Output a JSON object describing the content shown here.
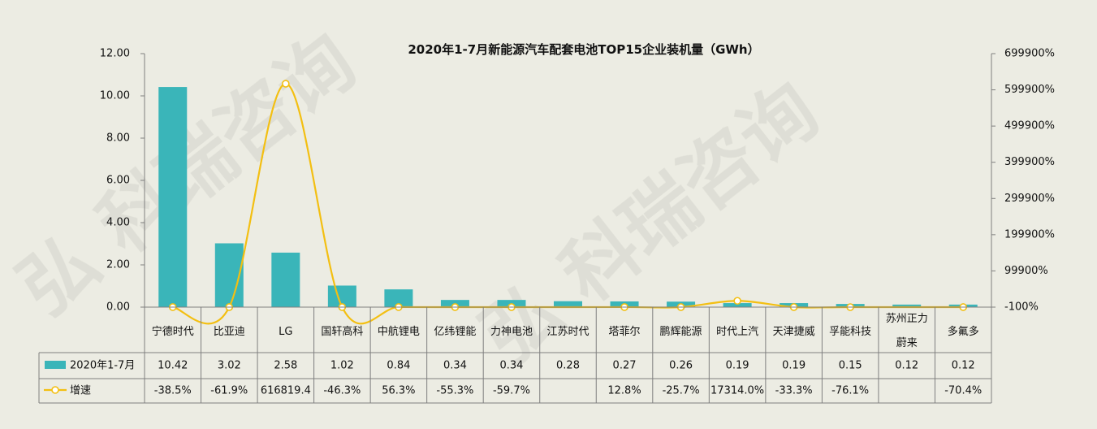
{
  "chart_data": {
    "type": "bar",
    "title": "2020年1-7月新能源汽车配套电池TOP15企业装机量（GWh）",
    "watermark": "弘 科瑞咨询",
    "categories": [
      "宁德时代",
      "比亚迪",
      "LG",
      "国轩高科",
      "中航锂电",
      "亿纬锂能",
      "力神电池",
      "江苏时代",
      "塔菲尔",
      "鹏辉能源",
      "时代上汽",
      "天津捷威",
      "孚能科技",
      "苏州正力蔚来",
      "多氟多"
    ],
    "series": [
      {
        "name": "2020年1-7月",
        "type": "bar",
        "axis": "left",
        "color": "#3ab5b9",
        "values": [
          10.42,
          3.02,
          2.58,
          1.02,
          0.84,
          0.34,
          0.34,
          0.28,
          0.27,
          0.26,
          0.19,
          0.19,
          0.15,
          0.12,
          0.12
        ],
        "labels": [
          "10.42",
          "3.02",
          "2.58",
          "1.02",
          "0.84",
          "0.34",
          "0.34",
          "0.28",
          "0.27",
          "0.26",
          "0.19",
          "0.19",
          "0.15",
          "0.12",
          "0.12"
        ]
      },
      {
        "name": "增速",
        "type": "line",
        "axis": "right",
        "color": "#f3bf12",
        "values": [
          -38.5,
          -61.9,
          616819.4,
          -46.3,
          56.3,
          -55.3,
          -59.7,
          null,
          12.8,
          -25.7,
          17314.0,
          -33.3,
          -76.1,
          null,
          -70.4
        ],
        "labels": [
          "-38.5%",
          "-61.9%",
          "616819.4",
          "-46.3%",
          "56.3%",
          "-55.3%",
          "-59.7%",
          "",
          "12.8%",
          "-25.7%",
          "17314.0%",
          "-33.3%",
          "-76.1%",
          "",
          "-70.4%"
        ]
      }
    ],
    "y_left": {
      "ylim": [
        0,
        12
      ],
      "ticks": [
        "0.00",
        "2.00",
        "4.00",
        "6.00",
        "8.00",
        "10.00",
        "12.00"
      ]
    },
    "y_right": {
      "ylim": [
        -100,
        699900
      ],
      "ticks": [
        "-100%",
        "99900%",
        "199900%",
        "299900%",
        "399900%",
        "499900%",
        "599900%",
        "699900%"
      ]
    },
    "legend": "data-table",
    "grid": false
  }
}
